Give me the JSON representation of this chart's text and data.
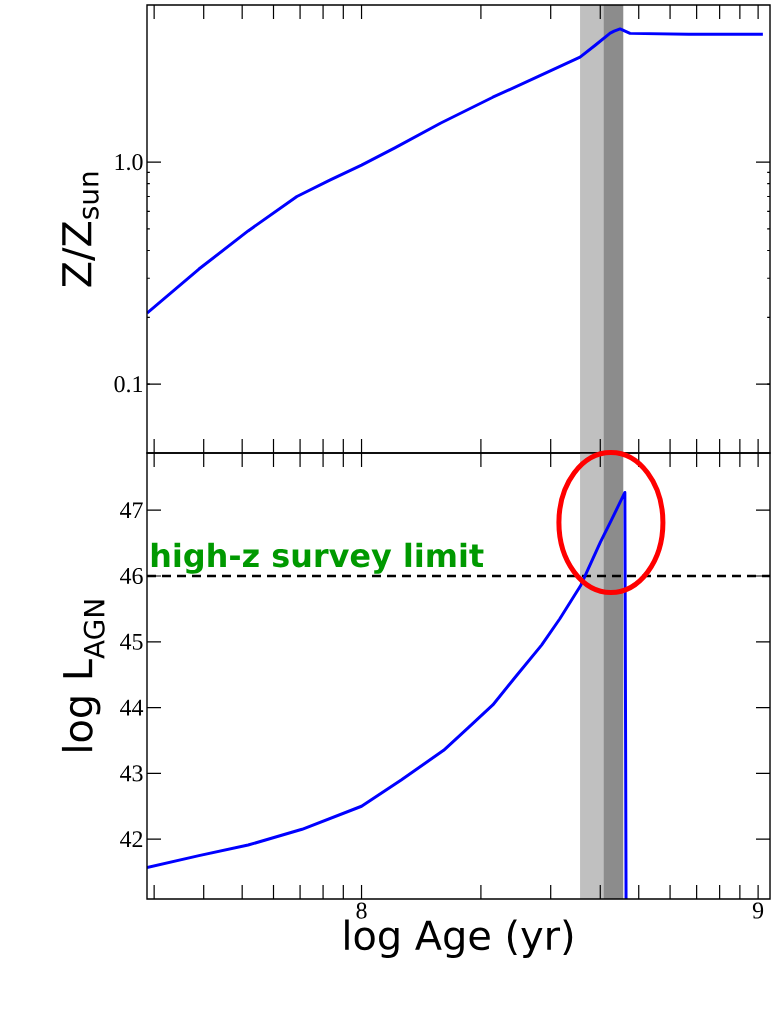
{
  "chart_data": [
    {
      "type": "line",
      "ylabel": "Z/Z$_{sun}$",
      "log": "y",
      "tick_labels": "y",
      "grid": false,
      "line_style": "solid",
      "xlim": [
        7.459,
        9.03
      ],
      "ylim": [
        0.049,
        5.1
      ],
      "xticks": [
        {
          "value": 7.477,
          "label": null
        },
        {
          "value": 7.602,
          "label": null
        },
        {
          "value": 7.699,
          "label": null
        },
        {
          "value": 7.778,
          "label": null
        },
        {
          "value": 7.845,
          "label": null
        },
        {
          "value": 7.903,
          "label": null
        },
        {
          "value": 7.954,
          "label": null
        },
        8,
        {
          "value": 8.301,
          "label": null
        },
        {
          "value": 8.477,
          "label": null
        },
        {
          "value": 8.602,
          "label": null
        },
        {
          "value": 8.699,
          "label": null
        },
        {
          "value": 8.778,
          "label": null
        },
        {
          "value": 8.845,
          "label": null
        },
        {
          "value": 8.903,
          "label": null
        },
        {
          "value": 8.954,
          "label": null
        },
        9
      ],
      "yticks": [
        0.1,
        {
          "value": 1,
          "label": "1.0"
        }
      ],
      "bands": [
        {
          "axis": "x",
          "from": 8.551,
          "to": 8.61,
          "color": "#c0c0c0"
        },
        {
          "axis": "x",
          "from": 8.61,
          "to": 8.66,
          "color": "#8c8c8c"
        }
      ],
      "series": [
        {
          "color": "#0000ff",
          "x": [
            7.459,
            7.59,
            7.714,
            7.837,
            7.92,
            8.0,
            8.084,
            8.2,
            8.331,
            8.45,
            8.551,
            8.59,
            8.627,
            8.637,
            8.652,
            8.677,
            8.825,
            9.012
          ],
          "values": [
            0.209,
            0.33,
            0.49,
            0.7,
            0.83,
            0.97,
            1.16,
            1.5,
            1.96,
            2.45,
            2.97,
            3.37,
            3.81,
            3.89,
            3.98,
            3.8,
            3.77,
            3.77
          ]
        }
      ]
    },
    {
      "type": "line",
      "xlabel": "log Age (yr)",
      "ylabel": "log L$_{AGN}$",
      "grid": false,
      "line_style": "solid",
      "xlim": [
        7.459,
        9.03
      ],
      "ylim": [
        41.09,
        47.87
      ],
      "xticks": [
        {
          "value": 7.477,
          "label": null
        },
        {
          "value": 7.602,
          "label": null
        },
        {
          "value": 7.699,
          "label": null
        },
        {
          "value": 7.778,
          "label": null
        },
        {
          "value": 7.845,
          "label": null
        },
        {
          "value": 7.903,
          "label": null
        },
        {
          "value": 7.954,
          "label": null
        },
        8,
        {
          "value": 8.301,
          "label": null
        },
        {
          "value": 8.477,
          "label": null
        },
        {
          "value": 8.602,
          "label": null
        },
        {
          "value": 8.699,
          "label": null
        },
        {
          "value": 8.778,
          "label": null
        },
        {
          "value": 8.845,
          "label": null
        },
        {
          "value": 8.903,
          "label": null
        },
        {
          "value": 8.954,
          "label": null
        },
        9
      ],
      "yticks": [
        42,
        43,
        44,
        45,
        46,
        47
      ],
      "bands": [
        {
          "axis": "x",
          "from": 8.551,
          "to": 8.61,
          "color": "#c0c0c0"
        },
        {
          "axis": "x",
          "from": 8.61,
          "to": 8.66,
          "color": "#8c8c8c"
        }
      ],
      "ref_lines": [
        {
          "axis": "y",
          "value": 46,
          "label": "high-z survey limit",
          "color": "#000000",
          "line_style": "dashed"
        }
      ],
      "series": [
        {
          "color": "#0000ff",
          "x": [
            7.459,
            7.59,
            7.714,
            7.85,
            8.0,
            8.1,
            8.207,
            8.27,
            8.331,
            8.39,
            8.454,
            8.5,
            8.553,
            8.602,
            8.63,
            8.664,
            8.667
          ],
          "values": [
            41.57,
            41.75,
            41.91,
            42.15,
            42.5,
            42.9,
            43.35,
            43.7,
            44.04,
            44.48,
            44.95,
            45.35,
            45.86,
            46.51,
            46.85,
            47.27,
            41.09
          ]
        }
      ]
    }
  ]
}
